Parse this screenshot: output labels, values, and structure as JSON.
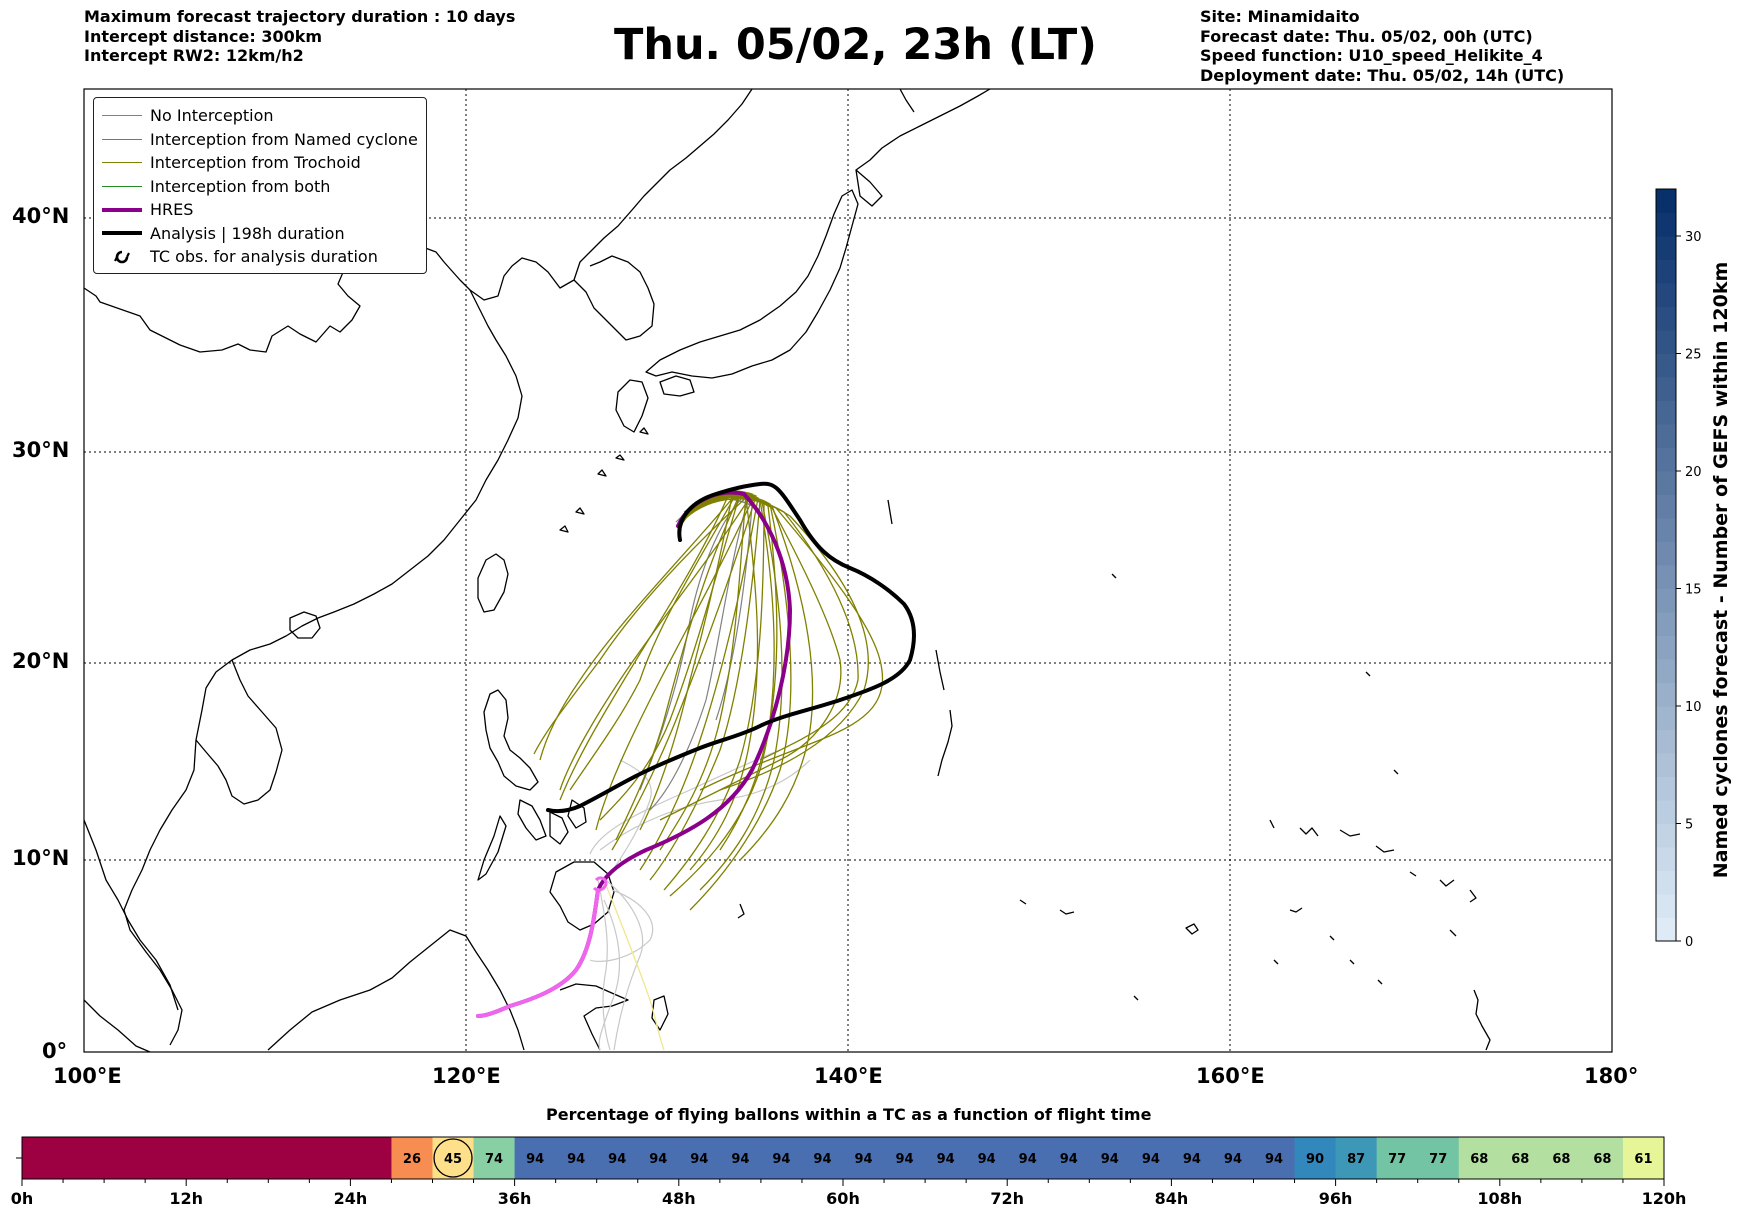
{
  "header": {
    "left_lines": [
      "Maximum forecast trajectory duration : 10 days",
      "Intercept distance: 300km",
      "Intercept RW2: 12km/h2"
    ],
    "title": "Thu. 05/02, 23h (LT)",
    "right_lines": [
      "Site: Minamidaito",
      "Forecast date: Thu. 05/02, 00h (UTC)",
      "Speed function: U10_speed_Helikite_4",
      "Deployment date: Thu. 05/02, 14h (UTC)"
    ]
  },
  "map": {
    "lon_labels": [
      "100°E",
      "120°E",
      "140°E",
      "160°E",
      "180°"
    ],
    "lat_labels": [
      "0°",
      "10°N",
      "20°N",
      "30°N",
      "40°N"
    ],
    "legend": [
      {
        "label": "No Interception",
        "color": "#808080",
        "width": 1
      },
      {
        "label": "Interception from Named cyclone",
        "color": "#ff4500",
        "width": 1
      },
      {
        "label": "Interception from Trochoid",
        "color": "#808000",
        "width": 1
      },
      {
        "label": "Interception from both",
        "color": "#228b22",
        "width": 1
      },
      {
        "label": "HRES",
        "color": "#8b008b",
        "width": 4
      },
      {
        "label": "Analysis | 198h duration",
        "color": "#000000",
        "width": 4
      },
      {
        "label": "TC obs. for analysis duration",
        "color": "#000000",
        "width": 0,
        "icon": "cyclone-symbol-icon"
      }
    ]
  },
  "colorbar": {
    "label": "Named cyclones forecast - Number of GEFS within 120km",
    "ticks": [
      "0",
      "5",
      "10",
      "15",
      "20",
      "25",
      "30"
    ]
  },
  "timeline": {
    "title": "Percentage of flying ballons within a TC as a function of flight time",
    "x_labels": [
      "0h",
      "12h",
      "24h",
      "36h",
      "48h",
      "60h",
      "72h",
      "84h",
      "96h",
      "108h",
      "120h"
    ],
    "segments": [
      {
        "value": "",
        "color": "#9e0142"
      },
      {
        "value": "26",
        "color": "#f88d52"
      },
      {
        "value": "45",
        "color": "#fee08b",
        "marked": true
      },
      {
        "value": "74",
        "color": "#88cfa4"
      },
      {
        "value": "94",
        "color": "#4a6fb0"
      },
      {
        "value": "94",
        "color": "#4a6fb0"
      },
      {
        "value": "94",
        "color": "#4a6fb0"
      },
      {
        "value": "94",
        "color": "#4a6fb0"
      },
      {
        "value": "94",
        "color": "#4a6fb0"
      },
      {
        "value": "94",
        "color": "#4a6fb0"
      },
      {
        "value": "94",
        "color": "#4a6fb0"
      },
      {
        "value": "94",
        "color": "#4a6fb0"
      },
      {
        "value": "94",
        "color": "#4a6fb0"
      },
      {
        "value": "94",
        "color": "#4a6fb0"
      },
      {
        "value": "94",
        "color": "#4a6fb0"
      },
      {
        "value": "94",
        "color": "#4a6fb0"
      },
      {
        "value": "94",
        "color": "#4a6fb0"
      },
      {
        "value": "94",
        "color": "#4a6fb0"
      },
      {
        "value": "94",
        "color": "#4a6fb0"
      },
      {
        "value": "94",
        "color": "#4a6fb0"
      },
      {
        "value": "94",
        "color": "#4a6fb0"
      },
      {
        "value": "94",
        "color": "#4a6fb0"
      },
      {
        "value": "94",
        "color": "#4a6fb0"
      },
      {
        "value": "90",
        "color": "#3288bd"
      },
      {
        "value": "87",
        "color": "#3d98b8"
      },
      {
        "value": "77",
        "color": "#72c4a4"
      },
      {
        "value": "77",
        "color": "#72c4a4"
      },
      {
        "value": "68",
        "color": "#b3e0a0"
      },
      {
        "value": "68",
        "color": "#b3e0a0"
      },
      {
        "value": "68",
        "color": "#b3e0a0"
      },
      {
        "value": "68",
        "color": "#b3e0a0"
      },
      {
        "value": "61",
        "color": "#e6f598"
      }
    ]
  }
}
